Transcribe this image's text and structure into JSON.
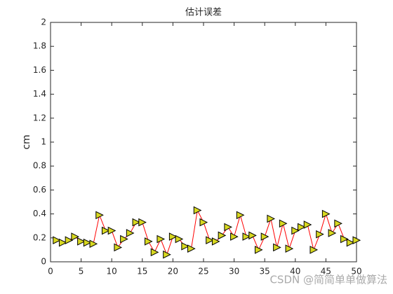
{
  "chart_data": {
    "type": "line",
    "title": "估计误差",
    "ylabel": "cm",
    "x": [
      1,
      2,
      3,
      4,
      5,
      6,
      7,
      8,
      9,
      10,
      11,
      12,
      13,
      14,
      15,
      16,
      17,
      18,
      19,
      20,
      21,
      22,
      23,
      24,
      25,
      26,
      27,
      28,
      29,
      30,
      31,
      32,
      33,
      34,
      35,
      36,
      37,
      38,
      39,
      40,
      41,
      42,
      43,
      44,
      45,
      46,
      47,
      48,
      49,
      50
    ],
    "values": [
      0.18,
      0.16,
      0.18,
      0.21,
      0.17,
      0.16,
      0.15,
      0.39,
      0.26,
      0.26,
      0.12,
      0.19,
      0.24,
      0.33,
      0.33,
      0.17,
      0.08,
      0.19,
      0.06,
      0.21,
      0.19,
      0.13,
      0.11,
      0.43,
      0.33,
      0.18,
      0.17,
      0.22,
      0.29,
      0.21,
      0.39,
      0.21,
      0.22,
      0.1,
      0.21,
      0.36,
      0.12,
      0.32,
      0.11,
      0.26,
      0.29,
      0.31,
      0.1,
      0.23,
      0.4,
      0.24,
      0.32,
      0.19,
      0.16,
      0.18
    ],
    "color": "#ff0000",
    "marker_color": "#d8d820",
    "xlim": [
      0,
      50
    ],
    "xticks": [
      0,
      5,
      10,
      15,
      20,
      25,
      30,
      35,
      40,
      45,
      50
    ],
    "ylim": [
      0,
      2
    ],
    "yticks": [
      0,
      0.2,
      0.4,
      0.6,
      0.8,
      1,
      1.2,
      1.4,
      1.6,
      1.8,
      2
    ],
    "watermark": "CSDN @简简单单做算法"
  }
}
